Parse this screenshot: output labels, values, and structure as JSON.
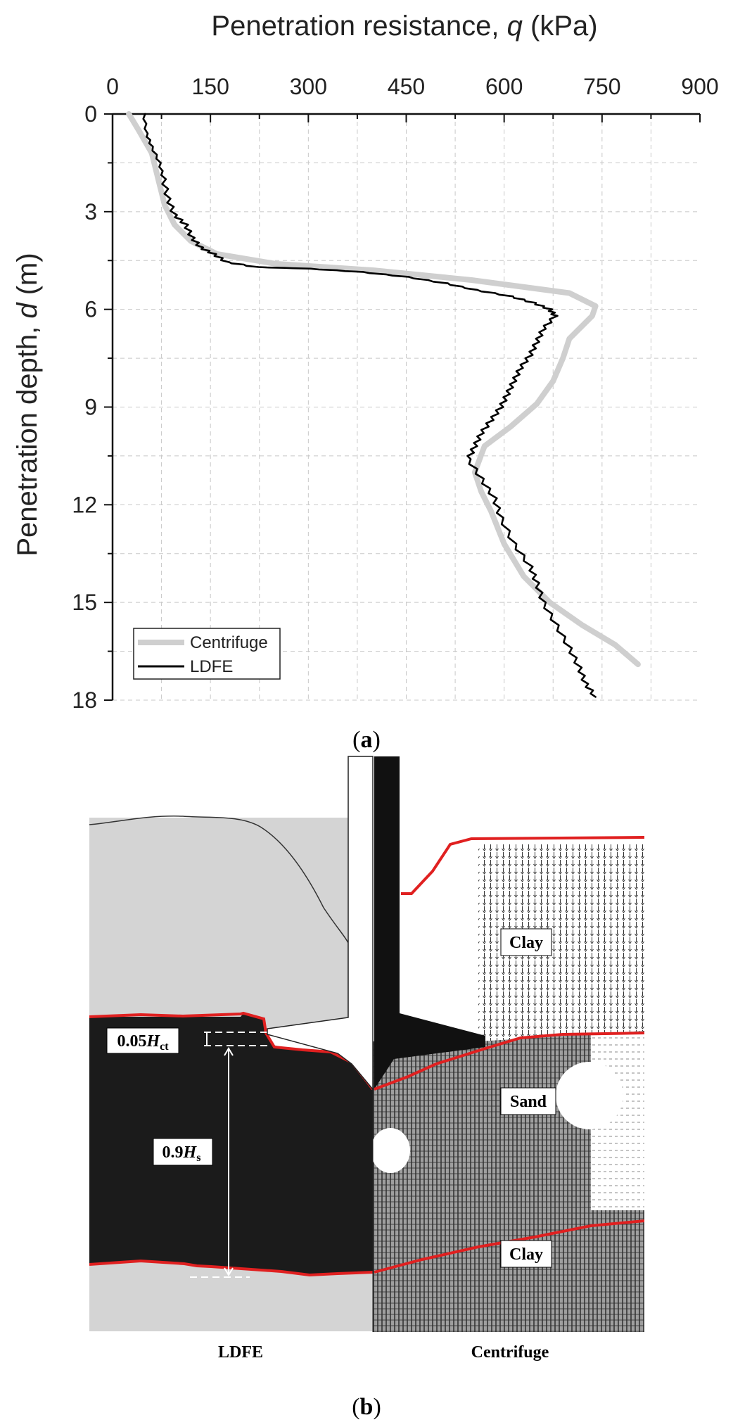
{
  "chart_data": {
    "type": "line",
    "xlabel": "Penetration resistance, q (kPa)",
    "xlabel_parts": {
      "pre": "Penetration resistance, ",
      "var": "q",
      "post": " (kPa)"
    },
    "ylabel": "Penetration depth, d (m)",
    "ylabel_parts": {
      "pre": "Penetration depth, ",
      "var": "d",
      "post": " (m)"
    },
    "xlim": [
      0,
      900
    ],
    "ylim": [
      0,
      18
    ],
    "y_inverted": true,
    "x_axis_position": "top",
    "xticks": [
      "0",
      "150",
      "300",
      "450",
      "600",
      "750",
      "900"
    ],
    "yticks": [
      "0",
      "3",
      "6",
      "9",
      "12",
      "15",
      "18"
    ],
    "grid": true,
    "legend_position": "bottom-left",
    "series": [
      {
        "name": "Centrifuge",
        "color": "#cfcfcf",
        "points": [
          [
            25,
            0
          ],
          [
            40,
            0.5
          ],
          [
            60,
            1.2
          ],
          [
            70,
            2
          ],
          [
            80,
            2.8
          ],
          [
            95,
            3.4
          ],
          [
            120,
            3.9
          ],
          [
            160,
            4.3
          ],
          [
            250,
            4.6
          ],
          [
            400,
            4.8
          ],
          [
            550,
            5.1
          ],
          [
            700,
            5.5
          ],
          [
            740,
            5.9
          ],
          [
            735,
            6.2
          ],
          [
            700,
            6.9
          ],
          [
            690,
            7.5
          ],
          [
            675,
            8.2
          ],
          [
            650,
            8.9
          ],
          [
            610,
            9.6
          ],
          [
            570,
            10.2
          ],
          [
            555,
            11
          ],
          [
            565,
            11.6
          ],
          [
            580,
            12.2
          ],
          [
            600,
            13.2
          ],
          [
            630,
            14.2
          ],
          [
            670,
            15.0
          ],
          [
            720,
            15.7
          ],
          [
            770,
            16.3
          ],
          [
            805,
            16.9
          ]
        ]
      },
      {
        "name": "LDFE",
        "color": "#000000",
        "points": [
          [
            48,
            0
          ],
          [
            52,
            0.6
          ],
          [
            60,
            1.0
          ],
          [
            72,
            1.5
          ],
          [
            78,
            2.0
          ],
          [
            85,
            2.6
          ],
          [
            95,
            3.1
          ],
          [
            112,
            3.4
          ],
          [
            122,
            3.8
          ],
          [
            135,
            4.1
          ],
          [
            155,
            4.3
          ],
          [
            175,
            4.55
          ],
          [
            220,
            4.7
          ],
          [
            300,
            4.75
          ],
          [
            380,
            4.85
          ],
          [
            450,
            5.0
          ],
          [
            510,
            5.2
          ],
          [
            555,
            5.4
          ],
          [
            610,
            5.6
          ],
          [
            645,
            5.8
          ],
          [
            670,
            6.0
          ],
          [
            678,
            6.2
          ],
          [
            660,
            6.6
          ],
          [
            650,
            7.0
          ],
          [
            640,
            7.4
          ],
          [
            625,
            7.8
          ],
          [
            615,
            8.2
          ],
          [
            605,
            8.6
          ],
          [
            595,
            9.0
          ],
          [
            580,
            9.4
          ],
          [
            565,
            9.8
          ],
          [
            555,
            10.2
          ],
          [
            545,
            10.6
          ],
          [
            565,
            11.2
          ],
          [
            585,
            11.8
          ],
          [
            595,
            12.4
          ],
          [
            615,
            13.2
          ],
          [
            640,
            13.9
          ],
          [
            650,
            14.4
          ],
          [
            660,
            15.0
          ],
          [
            680,
            15.7
          ],
          [
            700,
            16.4
          ],
          [
            715,
            17.0
          ],
          [
            725,
            17.5
          ],
          [
            740,
            17.9
          ]
        ]
      }
    ]
  },
  "panel_a_caption": {
    "open": "(",
    "letter": "a",
    "close": ")"
  },
  "panel_b": {
    "caption": {
      "open": "(",
      "letter": "b",
      "close": ")"
    },
    "left_label": "LDFE",
    "right_label": "Centrifuge",
    "layer_labels": [
      "Clay",
      "Sand",
      "Clay"
    ],
    "dim_top": {
      "num": "0.05",
      "var": "H",
      "sub": "ct"
    },
    "dim_mid": {
      "num": "0.9",
      "var": "H",
      "sub": "s"
    },
    "colors": {
      "soil_grey": "#d4d4d4",
      "sand_black": "#1b1b1b",
      "boundary_red": "#e02020"
    }
  }
}
